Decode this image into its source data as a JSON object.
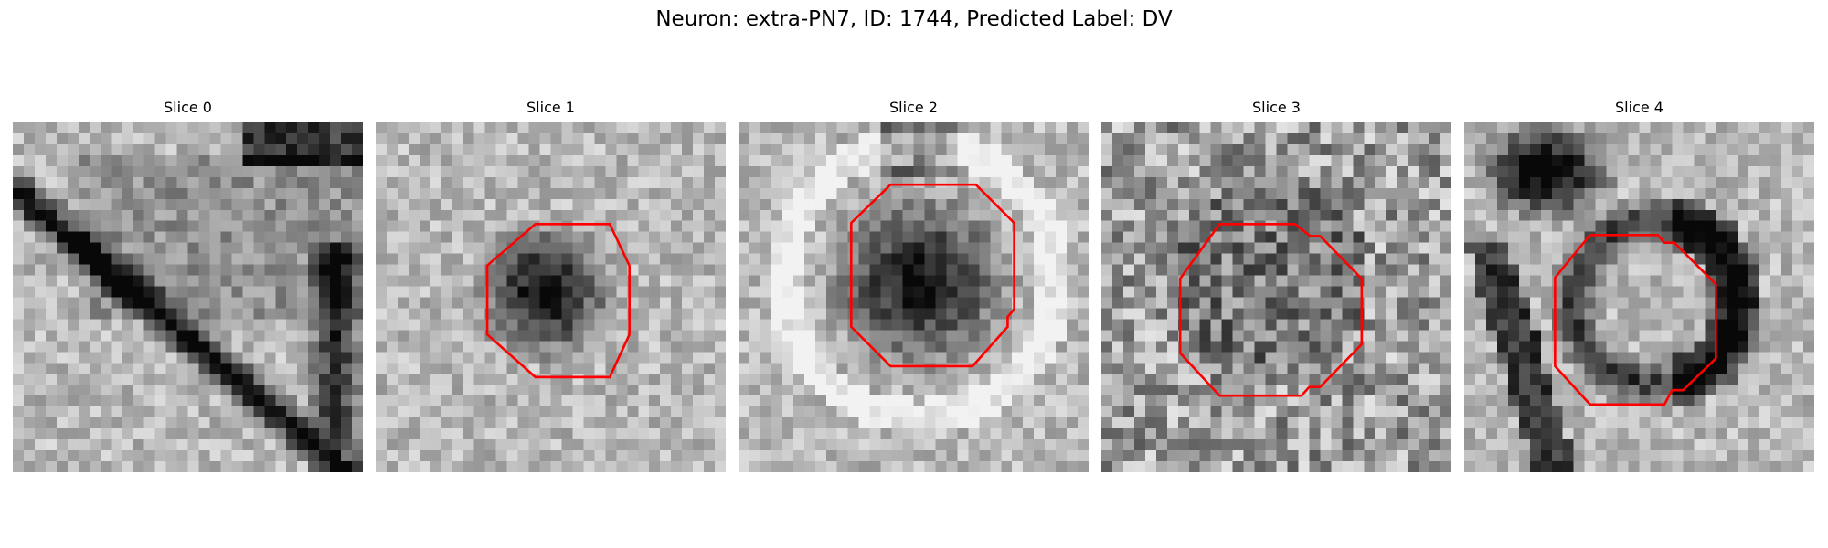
{
  "figure": {
    "suptitle": "Neuron: extra-PN7, ID: 1744, Predicted Label: DV",
    "outline_color": "#ff0000",
    "colormap": "grayscale",
    "panels": [
      {
        "title": "Slice 0",
        "has_outline": false,
        "seed": 11,
        "dark_feature": "diagonal-membrane"
      },
      {
        "title": "Slice 1",
        "has_outline": true,
        "seed": 23,
        "dark_feature": "center-blob"
      },
      {
        "title": "Slice 2",
        "has_outline": true,
        "seed": 37,
        "dark_feature": "large-blob-with-bright-ring"
      },
      {
        "title": "Slice 3",
        "has_outline": true,
        "seed": 41,
        "dark_feature": "noisy"
      },
      {
        "title": "Slice 4",
        "has_outline": true,
        "seed": 53,
        "dark_feature": "ring-with-dark-top-left"
      }
    ]
  }
}
